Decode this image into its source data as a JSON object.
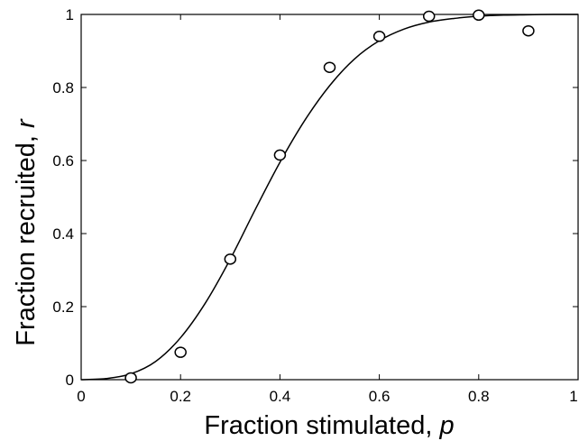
{
  "chart_data": {
    "type": "scatter",
    "title": "",
    "xlabel": "Fraction stimulated, ",
    "xlabel_var": "p",
    "ylabel": "Fraction recruited, ",
    "ylabel_var": "r",
    "xlim": [
      0,
      1
    ],
    "ylim": [
      0,
      1
    ],
    "xticks": [
      0,
      0.2,
      0.4,
      0.6,
      0.8,
      1
    ],
    "xtick_labels": [
      "0",
      "0.2",
      "0.4",
      "0.6",
      "0.8",
      "1"
    ],
    "yticks": [
      0,
      0.2,
      0.4,
      0.6,
      0.8,
      1
    ],
    "ytick_labels": [
      "0",
      "0.2",
      "0.4",
      "0.6",
      "0.8",
      "1"
    ],
    "grid": false,
    "legend": "none",
    "series": [
      {
        "kind": "points",
        "marker": "open-circle",
        "x": [
          0.1,
          0.2,
          0.3,
          0.4,
          0.5,
          0.6,
          0.7,
          0.8,
          0.9
        ],
        "y": [
          0.005,
          0.075,
          0.33,
          0.615,
          0.855,
          0.94,
          0.995,
          0.998,
          0.955
        ]
      },
      {
        "kind": "line",
        "x": [
          0,
          0.05,
          0.1,
          0.15,
          0.2,
          0.25,
          0.3,
          0.35,
          0.4,
          0.45,
          0.5,
          0.55,
          0.6,
          0.65,
          0.7,
          0.75,
          0.8,
          0.85,
          0.9,
          0.95,
          1.0
        ],
        "y": [
          0,
          0.003,
          0.016,
          0.05,
          0.115,
          0.21,
          0.33,
          0.465,
          0.595,
          0.71,
          0.805,
          0.878,
          0.928,
          0.96,
          0.979,
          0.989,
          0.995,
          0.998,
          0.999,
          1.0,
          1.0
        ]
      }
    ]
  }
}
